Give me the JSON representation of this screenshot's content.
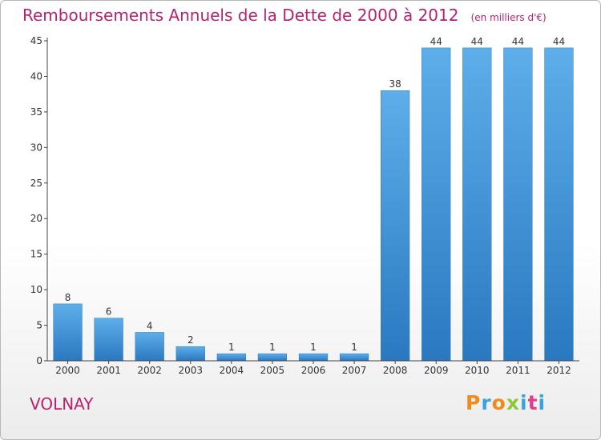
{
  "chart_data": {
    "type": "bar",
    "title": "Remboursements Annuels de la Dette de 2000 à 2012",
    "subtitle": "(en milliers d'€)",
    "xlabel": "",
    "ylabel": "",
    "categories": [
      "2000",
      "2001",
      "2002",
      "2003",
      "2004",
      "2005",
      "2006",
      "2007",
      "2008",
      "2009",
      "2010",
      "2011",
      "2012"
    ],
    "values": [
      8,
      6,
      4,
      2,
      1,
      1,
      1,
      1,
      38,
      44,
      44,
      44,
      44
    ],
    "data_labels": [
      "8",
      "6",
      "4",
      "2",
      "1",
      "1",
      "1",
      "1",
      "38",
      "44",
      "44",
      "44",
      "44"
    ],
    "ylim": [
      0,
      45
    ],
    "yticks": [
      0,
      5,
      10,
      15,
      20,
      25,
      30,
      35,
      40,
      45
    ],
    "grid": false,
    "legend": "none",
    "bar_color": "#3a8fd6",
    "bar_color_light": "#5eaeea",
    "bar_color_dark": "#2a78c0"
  },
  "footer": {
    "location": "VOLNAY",
    "brand_letters": [
      "P",
      "r",
      "o",
      "x",
      "i",
      "t",
      "i"
    ],
    "brand_colors": [
      "#f08a1c",
      "#3aa0de",
      "#f08a1c",
      "#8cc83c",
      "#3aa0de",
      "#e23c8a",
      "#3aa0de"
    ]
  },
  "colors": {
    "title": "#b5236e",
    "axis": "#444444"
  }
}
